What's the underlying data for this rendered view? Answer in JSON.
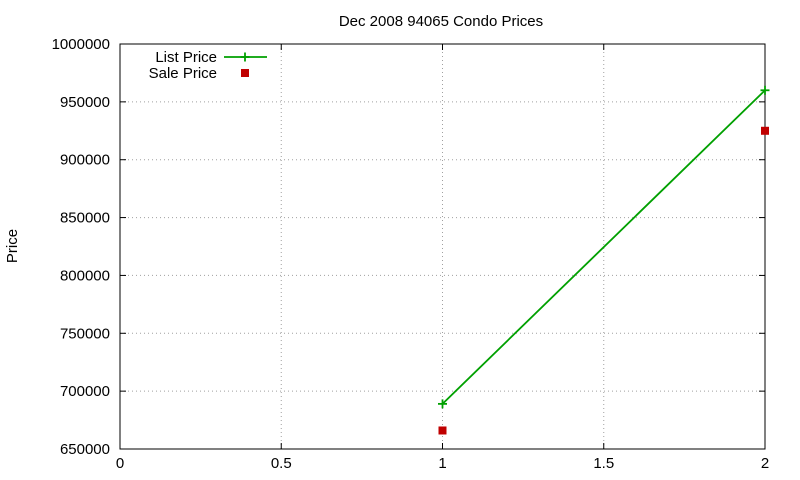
{
  "chart_data": {
    "type": "line",
    "title": "Dec 2008 94065 Condo Prices",
    "xlabel": "",
    "ylabel": "Price",
    "xlim": [
      0,
      2
    ],
    "ylim": [
      650000,
      1000000
    ],
    "x_ticks": [
      "0",
      "0.5",
      "1",
      "1.5",
      "2"
    ],
    "x_tick_values": [
      0,
      0.5,
      1,
      1.5,
      2
    ],
    "y_ticks": [
      "650000",
      "700000",
      "750000",
      "800000",
      "850000",
      "900000",
      "950000",
      "1000000"
    ],
    "y_tick_values": [
      650000,
      700000,
      750000,
      800000,
      850000,
      900000,
      950000,
      1000000
    ],
    "grid": true,
    "legend_position": "top-left",
    "series": [
      {
        "name": "List Price",
        "style": "line-points",
        "marker": "plus",
        "color": "#00a000",
        "x": [
          1,
          2
        ],
        "y": [
          689000,
          960000
        ]
      },
      {
        "name": "Sale Price",
        "style": "points",
        "marker": "square",
        "color": "#c00000",
        "x": [
          1,
          2
        ],
        "y": [
          666000,
          925000
        ]
      }
    ]
  }
}
